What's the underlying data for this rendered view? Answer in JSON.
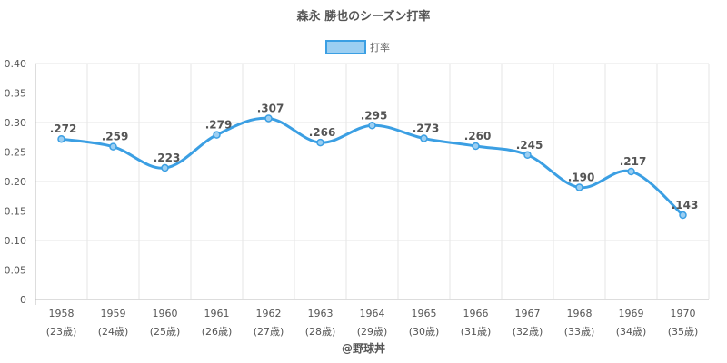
{
  "chart_data": {
    "type": "line",
    "title": "森永 勝也のシーズン打率",
    "legend": {
      "position": "top",
      "label": "打率"
    },
    "xlabel": "",
    "ylabel": "",
    "ylim": [
      0,
      0.4
    ],
    "yticks": [
      "0",
      "0.05",
      "0.10",
      "0.15",
      "0.20",
      "0.25",
      "0.30",
      "0.35",
      "0.40"
    ],
    "grid": true,
    "categories": [
      "1958",
      "1959",
      "1960",
      "1961",
      "1962",
      "1963",
      "1964",
      "1965",
      "1966",
      "1967",
      "1968",
      "1969",
      "1970"
    ],
    "sublabels": [
      "(23歳)",
      "(24歳)",
      "(25歳)",
      "(26歳)",
      "(27歳)",
      "(28歳)",
      "(29歳)",
      "(30歳)",
      "(31歳)",
      "(32歳)",
      "(33歳)",
      "(34歳)",
      "(35歳)"
    ],
    "series": [
      {
        "name": "打率",
        "values": [
          0.272,
          0.259,
          0.223,
          0.279,
          0.307,
          0.266,
          0.295,
          0.273,
          0.26,
          0.245,
          0.19,
          0.217,
          0.143
        ],
        "labels": [
          ".272",
          ".259",
          ".223",
          ".279",
          ".307",
          ".266",
          ".295",
          ".273",
          ".260",
          ".245",
          ".190",
          ".217",
          ".143"
        ]
      }
    ],
    "credit": "@野球丼"
  },
  "colors": {
    "line": "#3b9fe3",
    "legend_fill": "#9ccff2",
    "grid": "#e5e5e5",
    "axis": "#bbbbbb",
    "text": "#555555"
  }
}
